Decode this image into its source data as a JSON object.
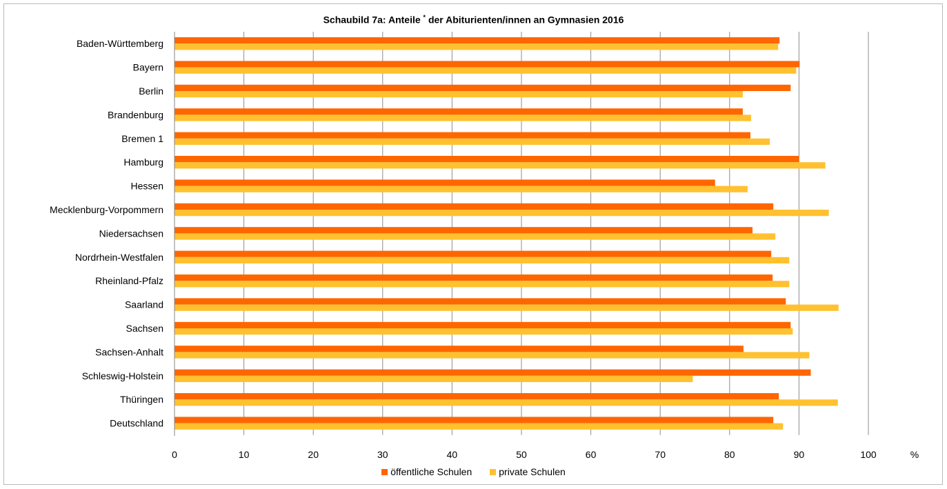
{
  "chart_data": {
    "type": "bar",
    "orientation": "horizontal",
    "title_main": "Schaubild 7a: Anteile",
    "title_mark": "*",
    "title_rest": "der Abiturienten/innen an Gymnasien 2016",
    "unit_label": "%",
    "xlim": [
      0,
      100
    ],
    "x_ticks": [
      0,
      10,
      20,
      30,
      40,
      50,
      60,
      70,
      80,
      90,
      100
    ],
    "grid": "vertical",
    "legend_position": "bottom",
    "categories": [
      "Baden-Württemberg",
      "Bayern",
      "Berlin",
      "Brandenburg",
      "Bremen 1",
      "Hamburg",
      "Hessen",
      "Mecklenburg-Vorpommern",
      "Niedersachsen",
      "Nordrhein-Westfalen",
      "Rheinland-Pfalz",
      "Saarland",
      "Sachsen",
      "Sachsen-Anhalt",
      "Schleswig-Holstein",
      "Thüringen",
      "Deutschland"
    ],
    "series": [
      {
        "name": "öffentliche Schulen",
        "color": "#ff6600",
        "values": [
          87.2,
          90.1,
          88.8,
          81.9,
          83.0,
          90.0,
          77.9,
          86.3,
          83.3,
          86.0,
          86.2,
          88.1,
          88.8,
          82.0,
          91.7,
          87.1,
          86.3
        ]
      },
      {
        "name": "private Schulen",
        "color": "#ffc12f",
        "values": [
          87.0,
          89.6,
          81.9,
          83.1,
          85.8,
          93.8,
          82.6,
          94.3,
          86.6,
          88.6,
          88.6,
          95.7,
          89.1,
          91.5,
          74.7,
          95.6,
          87.7
        ]
      }
    ]
  }
}
